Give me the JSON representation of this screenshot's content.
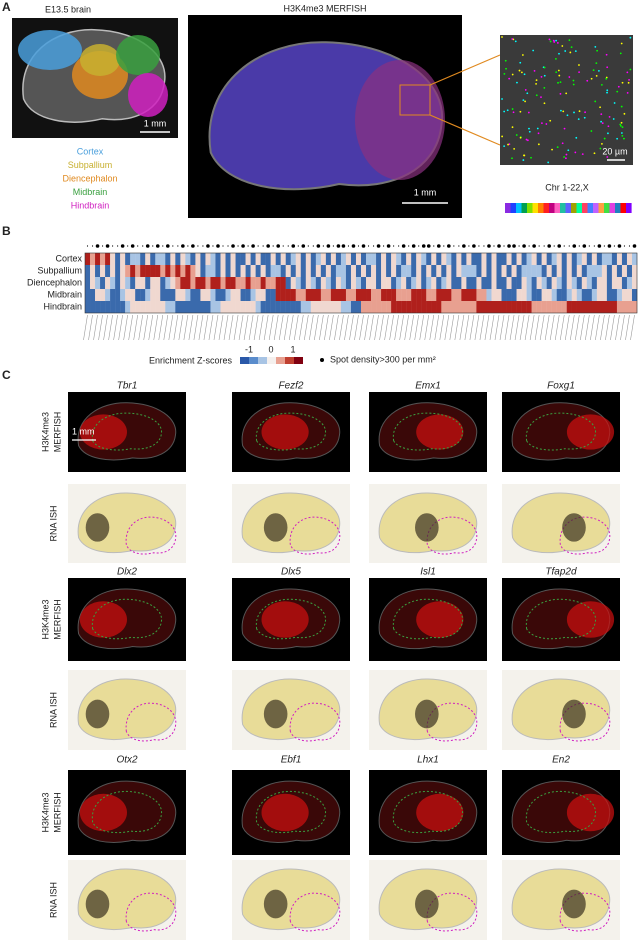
{
  "panel_labels": [
    "A",
    "B",
    "C"
  ],
  "panel_a": {
    "brain_title": "E13.5 brain",
    "brain_scale": "1 mm",
    "regions": [
      "Cortex",
      "Subpallium",
      "Diencephalon",
      "Midbrain",
      "Hindbrain"
    ],
    "merfish_title": "H3K4me3 MERFISH",
    "merfish_scale": "1 mm",
    "zoom_scale": "20 µm",
    "chromosome_label": "Chr 1-22,X"
  },
  "panel_b": {
    "rows": [
      "Cortex",
      "Subpallium",
      "Diencephalon",
      "Midbrain",
      "Hindbrain"
    ],
    "colorbar_title": "Enrichment Z-scores",
    "colorbar_ticks": [
      "-1",
      "0",
      "1"
    ],
    "dot_legend": "Spot density>300 per mm²"
  },
  "panel_c": {
    "merfish_label": [
      "H3K4me3",
      "MERFISH"
    ],
    "ish_label": "RNA ISH",
    "scale": "1 mm",
    "genes": [
      "Tbr1",
      "Fezf2",
      "Emx1",
      "Foxg1",
      "Dlx2",
      "Dlx5",
      "Isl1",
      "Tfap2d",
      "Otx2",
      "Ebf1",
      "Lhx1",
      "En2"
    ]
  }
}
